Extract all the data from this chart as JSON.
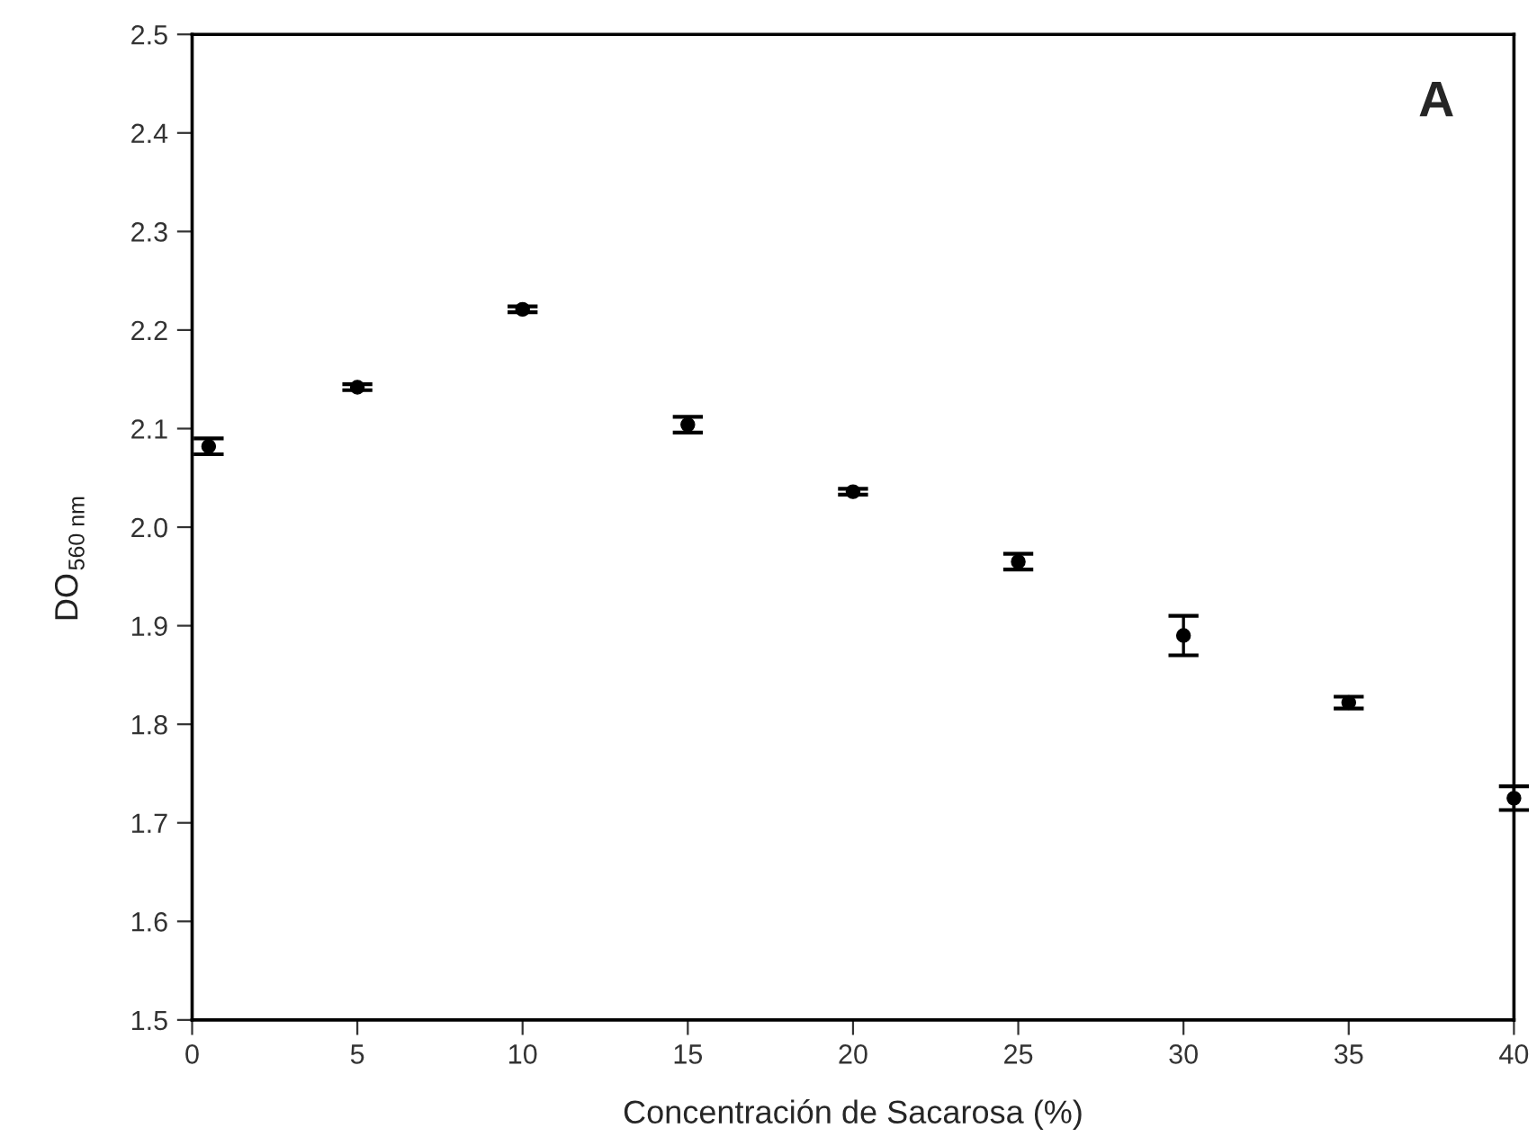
{
  "chart_data": {
    "type": "scatter",
    "xlabel": "Concentración de Sacarosa (%)",
    "ylabel": "DO$_{560 nm}$",
    "annotations": [
      "A"
    ],
    "x": [
      0.5,
      5,
      10,
      15,
      20,
      25,
      30,
      35,
      40
    ],
    "values": [
      2.082,
      2.142,
      2.221,
      2.104,
      2.036,
      1.965,
      1.89,
      1.822,
      1.725
    ],
    "errors": [
      0.008,
      0.003,
      0.003,
      0.008,
      0.003,
      0.008,
      0.02,
      0.006,
      0.012
    ],
    "color": "#000000",
    "marker": "circle",
    "xlim": [
      0,
      40
    ],
    "xticks": [
      0,
      5,
      10,
      15,
      20,
      25,
      30,
      35,
      40
    ],
    "ylim": [
      1.5,
      2.5
    ],
    "yticks": [
      1.5,
      1.6,
      1.7,
      1.8,
      1.9,
      {
        "value": 2.0,
        "label": "2.0"
      },
      2.1,
      2.2,
      2.3,
      2.4,
      2.5
    ],
    "grid": false,
    "legend": false
  }
}
